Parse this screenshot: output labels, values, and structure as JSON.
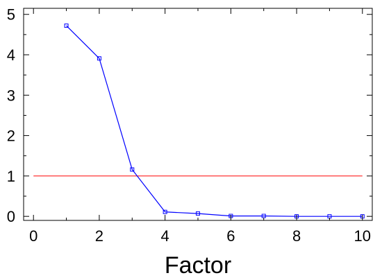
{
  "chart_data": {
    "type": "line",
    "title": "",
    "xlabel": "Factor",
    "ylabel": "",
    "xlim": [
      -0.3,
      10.3
    ],
    "ylim": [
      -0.1,
      5.15
    ],
    "x_ticks": [
      0,
      2,
      4,
      6,
      8,
      10
    ],
    "y_ticks": [
      0,
      1,
      2,
      3,
      4,
      5
    ],
    "grid": false,
    "legend": "none",
    "series": [
      {
        "marker": "square",
        "color": "#0000ff",
        "x": [
          1,
          2,
          3,
          4,
          5,
          6,
          7,
          8,
          9,
          10
        ],
        "y": [
          4.72,
          3.91,
          1.16,
          0.11,
          0.07,
          0.01,
          0.01,
          0.0,
          0.0,
          0.0
        ]
      }
    ],
    "reference_lines": [
      {
        "axis": "y",
        "value": 1,
        "color": "#ff0000"
      }
    ],
    "axis_color": "#000000"
  }
}
